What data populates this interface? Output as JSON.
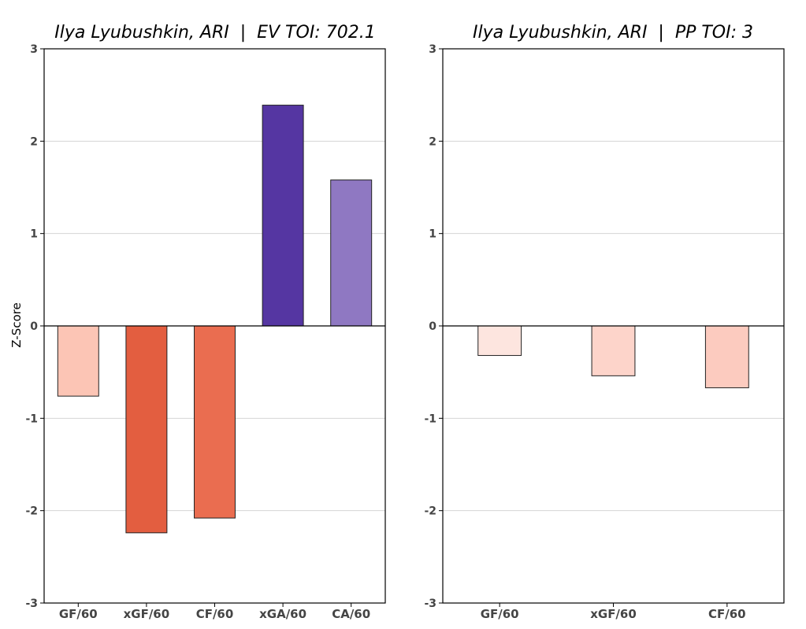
{
  "chart_data": [
    {
      "type": "bar",
      "title": "Ilya Lyubushkin, ARI  |  EV TOI: 702.1",
      "ylabel": "Z-Score",
      "xlabel": "",
      "ylim": [
        -3,
        3
      ],
      "yticks": [
        3,
        2,
        1,
        0,
        -1,
        -2,
        -3
      ],
      "grid": true,
      "categories": [
        "GF/60",
        "xGF/60",
        "CF/60",
        "xGA/60",
        "CA/60"
      ],
      "values": [
        -0.76,
        -2.24,
        -2.08,
        2.39,
        1.58
      ],
      "colors": [
        "#fcc5b5",
        "#e35e40",
        "#ea6d50",
        "#5536a2",
        "#8f78c2"
      ]
    },
    {
      "type": "bar",
      "title": "Ilya Lyubushkin, ARI  |  PP TOI: 3",
      "ylabel": "",
      "xlabel": "",
      "ylim": [
        -3,
        3
      ],
      "yticks": [
        3,
        2,
        1,
        0,
        -1,
        -2,
        -3
      ],
      "grid": true,
      "categories": [
        "GF/60",
        "xGF/60",
        "CF/60"
      ],
      "values": [
        -0.32,
        -0.54,
        -0.67
      ],
      "colors": [
        "#fde5df",
        "#fdd4ca",
        "#fccbbf"
      ]
    }
  ]
}
